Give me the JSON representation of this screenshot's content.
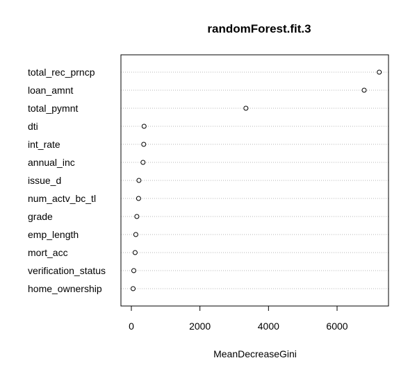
{
  "chart_data": {
    "type": "scatter",
    "title": "randomForest.fit.3",
    "xlabel": "MeanDecreaseGini",
    "ylabel": "",
    "xlim": [
      -300,
      7400
    ],
    "xticks": [
      0,
      2000,
      4000,
      6000
    ],
    "grid": "dotted horizontal",
    "legend": "none",
    "categories": [
      "total_rec_prncp",
      "loan_amnt",
      "total_pymnt",
      "dti",
      "int_rate",
      "annual_inc",
      "issue_d",
      "num_actv_bc_tl",
      "grade",
      "emp_length",
      "mort_acc",
      "verification_status",
      "home_ownership"
    ],
    "values": [
      7230,
      6790,
      3340,
      370,
      360,
      340,
      220,
      210,
      160,
      130,
      110,
      70,
      50
    ]
  }
}
